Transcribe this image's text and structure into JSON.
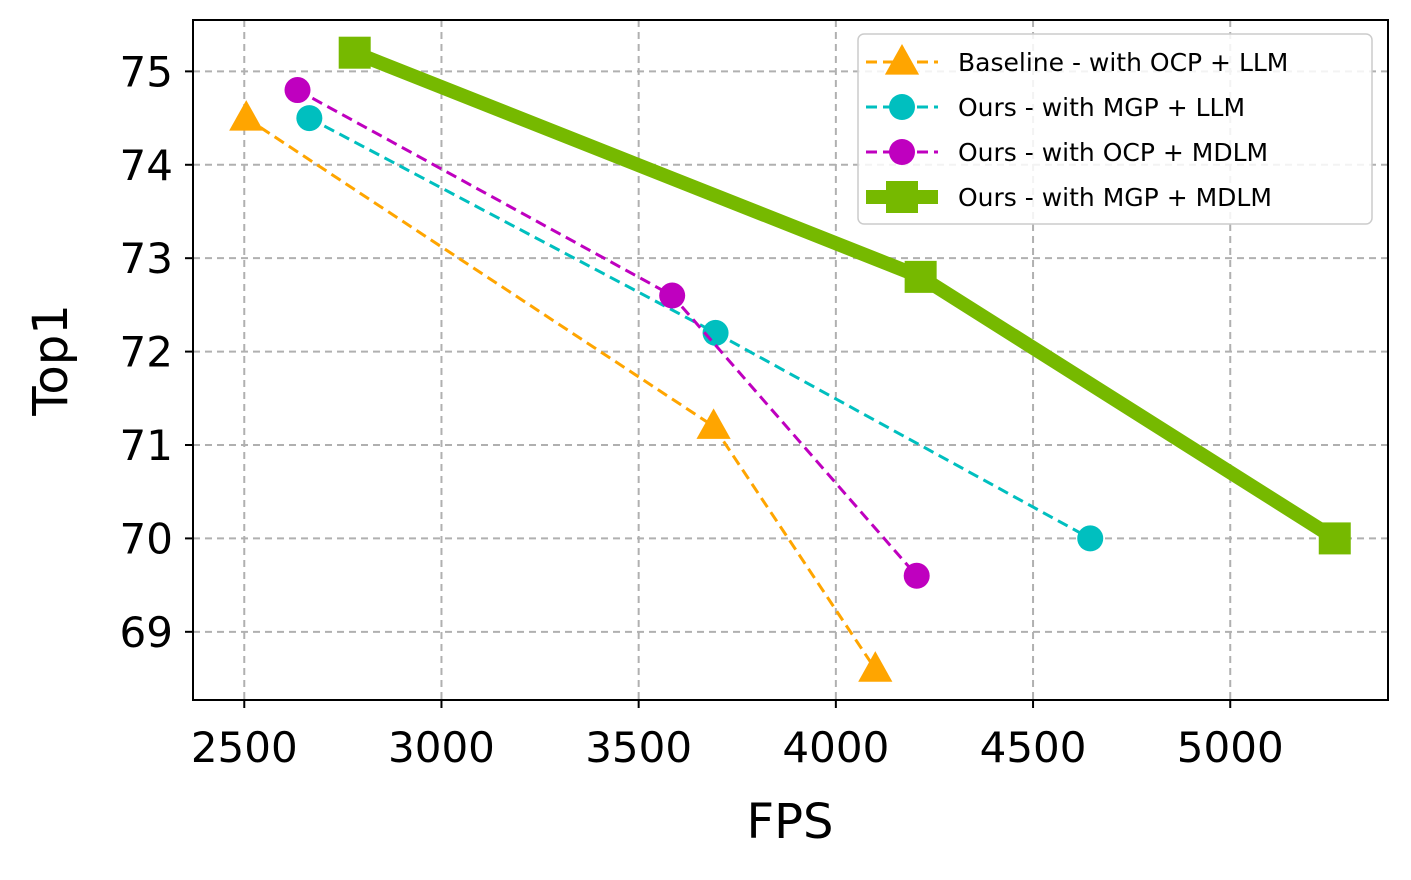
{
  "chart_data": {
    "type": "line",
    "title": "",
    "xlabel": "FPS",
    "ylabel": "Top1",
    "xlim": [
      2370,
      5400
    ],
    "ylim": [
      68.27,
      75.55
    ],
    "xticks": [
      2500,
      3000,
      3500,
      4000,
      4500,
      5000
    ],
    "yticks": [
      69,
      70,
      71,
      72,
      73,
      74,
      75
    ],
    "xtick_labels": [
      "2500",
      "3000",
      "3500",
      "4000",
      "4500",
      "5000"
    ],
    "ytick_labels": [
      "69",
      "70",
      "71",
      "72",
      "73",
      "74",
      "75"
    ],
    "grid": true,
    "legend_position": "top-right",
    "series": [
      {
        "name": "Baseline - with OCP + LLM",
        "color": "#FFA500",
        "marker": "triangle",
        "line_style": "dashed",
        "points": [
          [
            2505,
            74.5
          ],
          [
            3690,
            71.2
          ],
          [
            4100,
            68.6
          ]
        ]
      },
      {
        "name": "Ours - with MGP + LLM",
        "color": "#00BFBF",
        "marker": "circle",
        "line_style": "dashed",
        "points": [
          [
            2665,
            74.5
          ],
          [
            3695,
            72.2
          ],
          [
            4645,
            70.0
          ]
        ]
      },
      {
        "name": "Ours - with OCP + MDLM",
        "color": "#BF00BF",
        "marker": "circle",
        "line_style": "dashed",
        "points": [
          [
            2635,
            74.8
          ],
          [
            3585,
            72.6
          ],
          [
            4205,
            69.6
          ]
        ]
      },
      {
        "name": "Ours - with MGP + MDLM",
        "color": "#76B900",
        "marker": "square",
        "line_style": "solid-thick",
        "points": [
          [
            2780,
            75.2
          ],
          [
            4215,
            72.8
          ],
          [
            5265,
            70.0
          ]
        ]
      }
    ]
  }
}
